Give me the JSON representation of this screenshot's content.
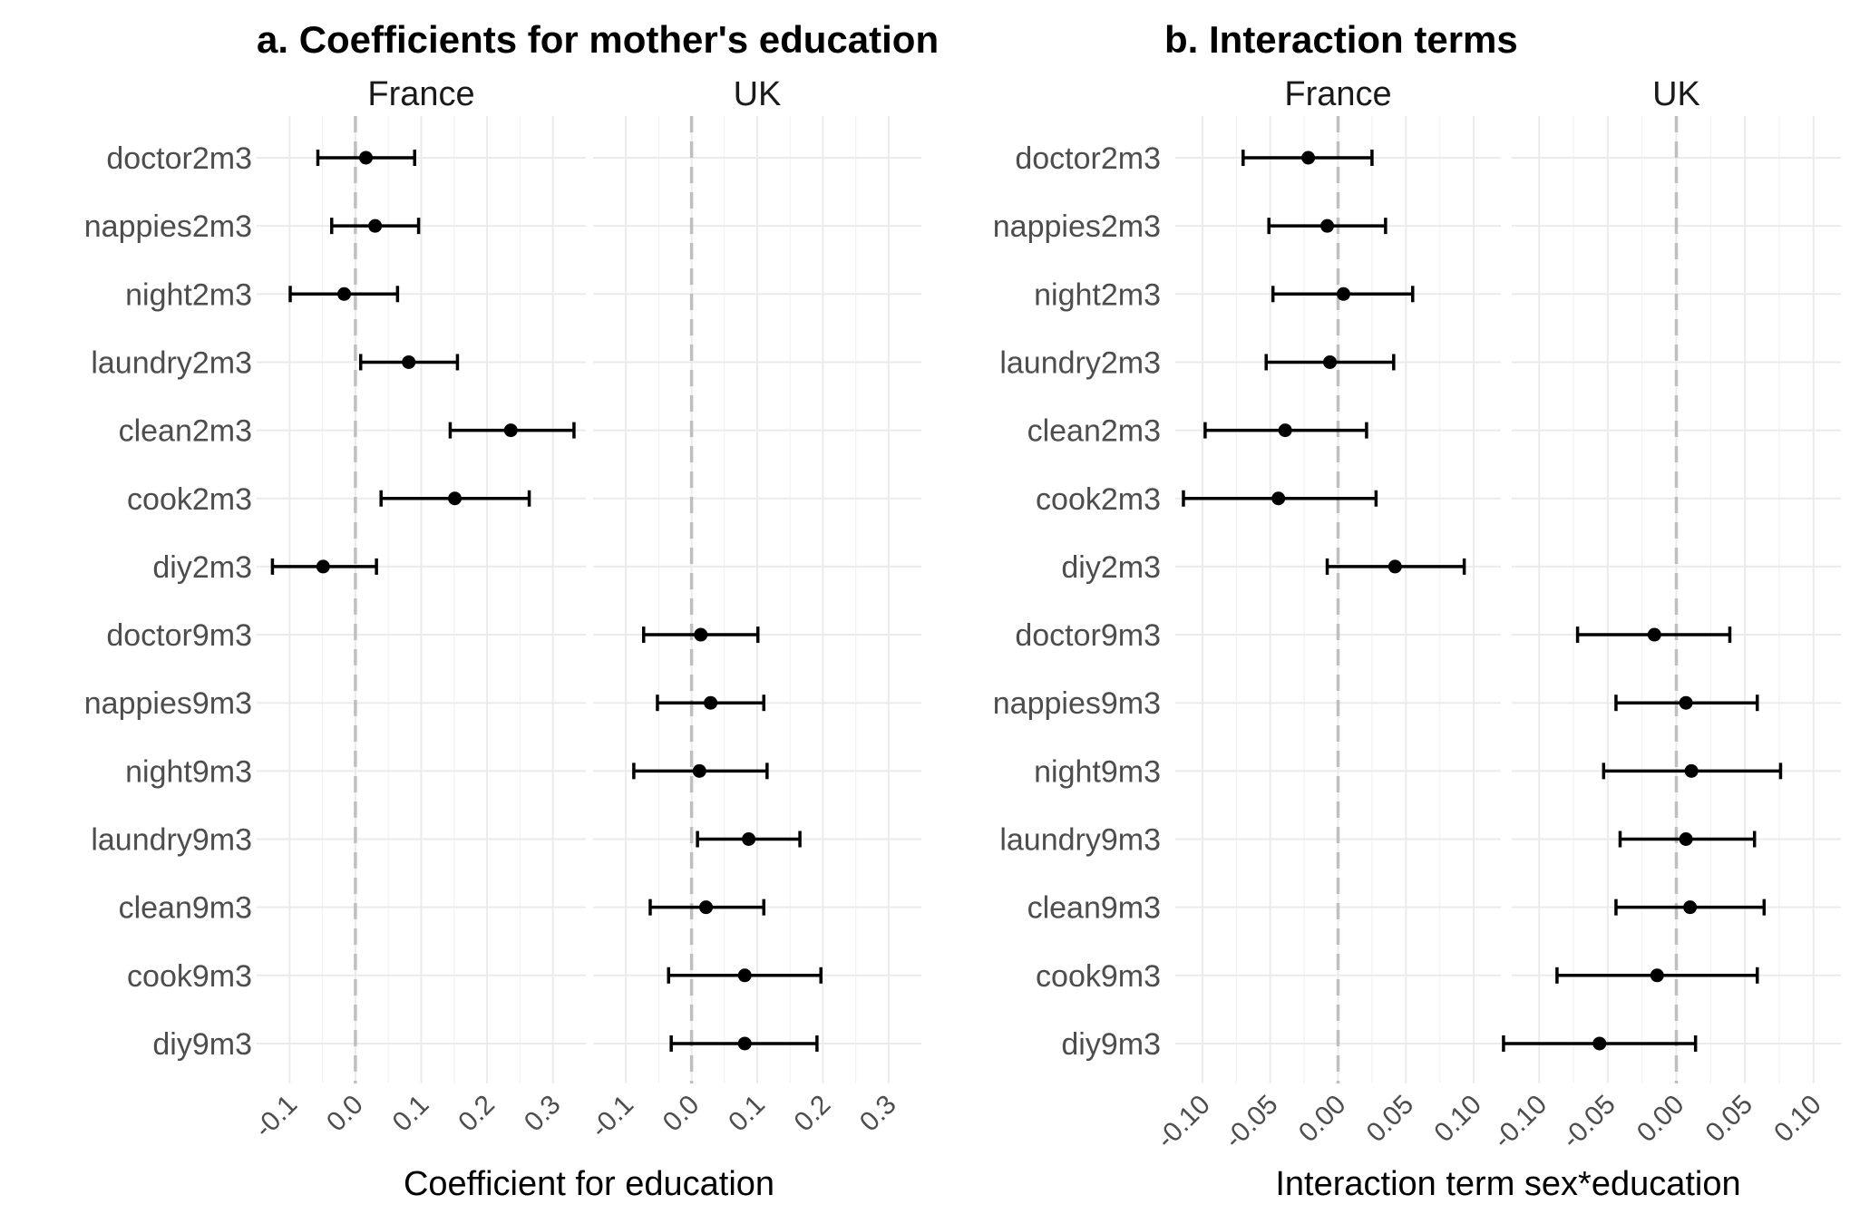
{
  "chart_data": [
    {
      "type": "scatter",
      "subtype": "coefficient plot with error bars",
      "title": "a. Coefficients for mother's education",
      "xlabel": "Coefficient for education",
      "ylabel": "",
      "facets": [
        "France",
        "UK"
      ],
      "xlim": [
        -0.15,
        0.35
      ],
      "xticks": [
        -0.1,
        0.0,
        0.1,
        0.2,
        0.3
      ],
      "xtick_labels": [
        "-0.1",
        "0.0",
        "0.1",
        "0.2",
        "0.3"
      ],
      "reference_line": 0,
      "grid": true,
      "categories": [
        "doctor2m3",
        "nappies2m3",
        "night2m3",
        "laundry2m3",
        "clean2m3",
        "cook2m3",
        "diy2m3",
        "doctor9m3",
        "nappies9m3",
        "night9m3",
        "laundry9m3",
        "clean9m3",
        "cook9m3",
        "diy9m3"
      ],
      "points": [
        {
          "facet": "France",
          "label": "doctor2m3",
          "estimate": 0.016,
          "lower": -0.057,
          "upper": 0.09
        },
        {
          "facet": "France",
          "label": "nappies2m3",
          "estimate": 0.03,
          "lower": -0.036,
          "upper": 0.096
        },
        {
          "facet": "France",
          "label": "night2m3",
          "estimate": -0.017,
          "lower": -0.099,
          "upper": 0.064
        },
        {
          "facet": "France",
          "label": "laundry2m3",
          "estimate": 0.081,
          "lower": 0.008,
          "upper": 0.155
        },
        {
          "facet": "France",
          "label": "clean2m3",
          "estimate": 0.236,
          "lower": 0.144,
          "upper": 0.332
        },
        {
          "facet": "France",
          "label": "cook2m3",
          "estimate": 0.151,
          "lower": 0.039,
          "upper": 0.264
        },
        {
          "facet": "France",
          "label": "diy2m3",
          "estimate": -0.049,
          "lower": -0.126,
          "upper": 0.032
        },
        {
          "facet": "UK",
          "label": "doctor9m3",
          "estimate": 0.014,
          "lower": -0.073,
          "upper": 0.101
        },
        {
          "facet": "UK",
          "label": "nappies9m3",
          "estimate": 0.029,
          "lower": -0.052,
          "upper": 0.11
        },
        {
          "facet": "UK",
          "label": "night9m3",
          "estimate": 0.012,
          "lower": -0.088,
          "upper": 0.115
        },
        {
          "facet": "UK",
          "label": "laundry9m3",
          "estimate": 0.087,
          "lower": 0.009,
          "upper": 0.165
        },
        {
          "facet": "UK",
          "label": "clean9m3",
          "estimate": 0.022,
          "lower": -0.063,
          "upper": 0.11
        },
        {
          "facet": "UK",
          "label": "cook9m3",
          "estimate": 0.081,
          "lower": -0.035,
          "upper": 0.197
        },
        {
          "facet": "UK",
          "label": "diy9m3",
          "estimate": 0.081,
          "lower": -0.031,
          "upper": 0.191
        }
      ]
    },
    {
      "type": "scatter",
      "subtype": "coefficient plot with error bars",
      "title": "b. Interaction terms",
      "xlabel": "Interaction term sex*education",
      "ylabel": "",
      "facets": [
        "France",
        "UK"
      ],
      "xlim": [
        -0.12,
        0.12
      ],
      "xticks": [
        -0.1,
        -0.05,
        0.0,
        0.05,
        0.1
      ],
      "xtick_labels": [
        "-0.10",
        "-0.05",
        "0.00",
        "0.05",
        "0.10"
      ],
      "reference_line": 0,
      "grid": true,
      "categories": [
        "doctor2m3",
        "nappies2m3",
        "night2m3",
        "laundry2m3",
        "clean2m3",
        "cook2m3",
        "diy2m3",
        "doctor9m3",
        "nappies9m3",
        "night9m3",
        "laundry9m3",
        "clean9m3",
        "cook9m3",
        "diy9m3"
      ],
      "points": [
        {
          "facet": "France",
          "label": "doctor2m3",
          "estimate": -0.022,
          "lower": -0.07,
          "upper": 0.025
        },
        {
          "facet": "France",
          "label": "nappies2m3",
          "estimate": -0.008,
          "lower": -0.051,
          "upper": 0.035
        },
        {
          "facet": "France",
          "label": "night2m3",
          "estimate": 0.004,
          "lower": -0.048,
          "upper": 0.055
        },
        {
          "facet": "France",
          "label": "laundry2m3",
          "estimate": -0.006,
          "lower": -0.053,
          "upper": 0.041
        },
        {
          "facet": "France",
          "label": "clean2m3",
          "estimate": -0.039,
          "lower": -0.098,
          "upper": 0.021
        },
        {
          "facet": "France",
          "label": "cook2m3",
          "estimate": -0.044,
          "lower": -0.114,
          "upper": 0.028
        },
        {
          "facet": "France",
          "label": "diy2m3",
          "estimate": 0.042,
          "lower": -0.008,
          "upper": 0.093
        },
        {
          "facet": "UK",
          "label": "doctor9m3",
          "estimate": -0.016,
          "lower": -0.072,
          "upper": 0.039
        },
        {
          "facet": "UK",
          "label": "nappies9m3",
          "estimate": 0.007,
          "lower": -0.044,
          "upper": 0.059
        },
        {
          "facet": "UK",
          "label": "night9m3",
          "estimate": 0.011,
          "lower": -0.053,
          "upper": 0.076
        },
        {
          "facet": "UK",
          "label": "laundry9m3",
          "estimate": 0.007,
          "lower": -0.041,
          "upper": 0.057
        },
        {
          "facet": "UK",
          "label": "clean9m3",
          "estimate": 0.01,
          "lower": -0.044,
          "upper": 0.064
        },
        {
          "facet": "UK",
          "label": "cook9m3",
          "estimate": -0.014,
          "lower": -0.087,
          "upper": 0.059
        },
        {
          "facet": "UK",
          "label": "diy9m3",
          "estimate": -0.056,
          "lower": -0.126,
          "upper": 0.014
        }
      ]
    }
  ]
}
